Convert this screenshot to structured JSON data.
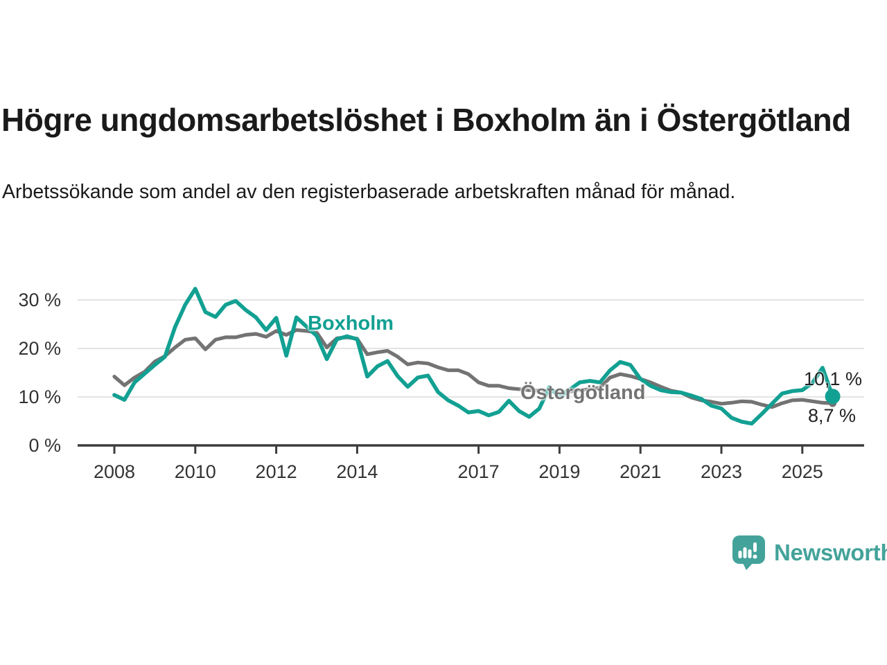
{
  "title": "Högre ungdomsarbetslöshet i Boxholm än i Östergötland",
  "subtitle": "Arbetssökande som andel av den registerbaserade arbetskraften månad för månad.",
  "branding": {
    "logo_text": "Newsworthy",
    "logo_icon": "newsworthy-speech-bubble-bar-chart-icon"
  },
  "colors": {
    "accent_teal": "#12a092",
    "line_gray": "#737373",
    "grid": "#dbdbdb",
    "axis": "#3c3c3c",
    "tick_text": "#333333",
    "text_dark": "#1a1a1a",
    "logo_teal": "#43a39a"
  },
  "chart_data": {
    "type": "line",
    "unit": "percent",
    "x_start": 2008.0,
    "x_step_years": 0.25,
    "x_end": 2025.75,
    "x_ticks": [
      2008,
      2010,
      2012,
      2014,
      2017,
      2019,
      2021,
      2023,
      2025
    ],
    "y_ticks": [
      0,
      10,
      20,
      30
    ],
    "y_tick_suffix": " %",
    "ylim": [
      0,
      34
    ],
    "grid": "horizontal-only",
    "legend_position": "inline-labels-on-lines",
    "series": [
      {
        "name": "Boxholm",
        "color": "#12a092",
        "end_label": "10,1 %",
        "end_value": 10.1,
        "values": [
          10.4,
          9.4,
          13.0,
          14.8,
          16.6,
          18.3,
          24.4,
          29.0,
          32.3,
          27.5,
          26.5,
          29.0,
          29.8,
          27.9,
          26.4,
          23.8,
          26.3,
          18.5,
          26.4,
          24.5,
          22.6,
          17.8,
          21.9,
          22.5,
          21.9,
          14.2,
          16.3,
          17.4,
          14.3,
          12.1,
          14.0,
          14.4,
          11.0,
          9.3,
          8.2,
          6.8,
          7.1,
          6.2,
          6.9,
          9.2,
          7.1,
          5.9,
          7.6,
          12.0,
          10.0,
          11.5,
          13.0,
          13.3,
          13.0,
          15.5,
          17.2,
          16.6,
          13.7,
          12.3,
          11.4,
          11.0,
          10.9,
          10.3,
          9.6,
          8.2,
          7.6,
          5.7,
          4.9,
          4.5,
          6.5,
          8.6,
          10.7,
          11.2,
          11.4,
          12.9,
          16.0,
          10.1
        ]
      },
      {
        "name": "Östergötland",
        "color": "#737373",
        "end_label": "8,7 %",
        "end_value": 8.7,
        "values": [
          14.2,
          12.4,
          14.0,
          15.2,
          17.3,
          18.4,
          20.2,
          21.8,
          22.1,
          19.8,
          21.8,
          22.3,
          22.3,
          22.8,
          23.0,
          22.4,
          23.6,
          22.8,
          23.8,
          23.6,
          23.3,
          20.2,
          22.1,
          22.3,
          22.0,
          18.8,
          19.2,
          19.5,
          18.3,
          16.7,
          17.1,
          16.9,
          16.1,
          15.5,
          15.5,
          14.7,
          13.0,
          12.3,
          12.3,
          11.8,
          11.6,
          11.4,
          11.3,
          11.2,
          10.9,
          11.1,
          11.4,
          11.6,
          11.9,
          14.0,
          14.7,
          14.3,
          13.7,
          13.0,
          12.1,
          11.3,
          10.9,
          9.9,
          9.3,
          9.0,
          8.6,
          8.8,
          9.1,
          9.0,
          8.4,
          7.9,
          8.7,
          9.3,
          9.4,
          9.1,
          8.8,
          8.7
        ]
      }
    ]
  }
}
